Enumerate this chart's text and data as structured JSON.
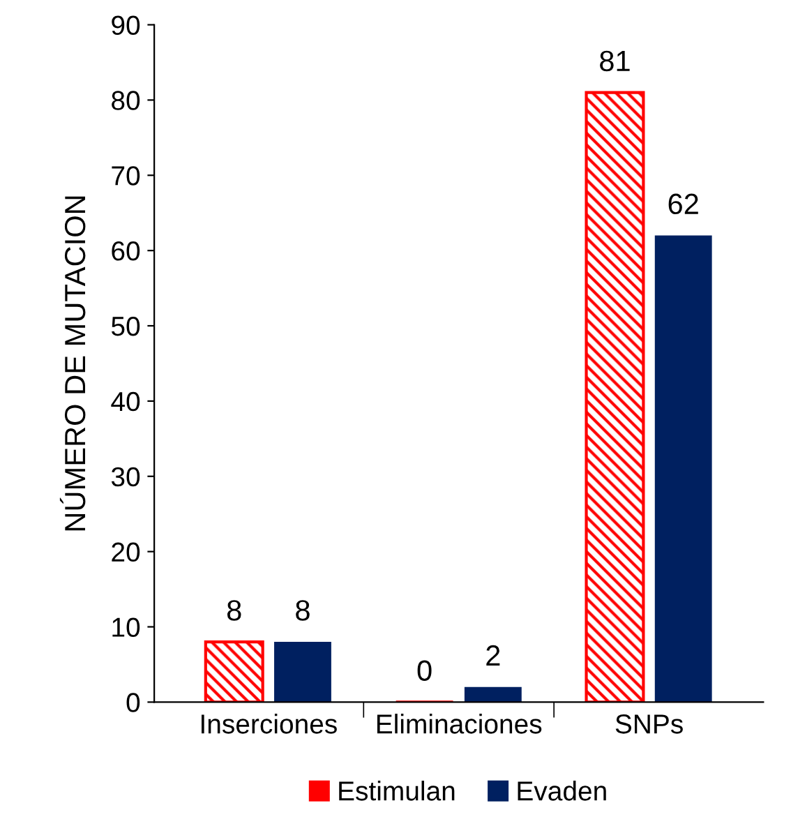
{
  "chart_data": {
    "type": "bar",
    "ylabel": "NÚMERO DE MUTACION",
    "categories": [
      "Inserciones",
      "Eliminaciones",
      "SNPs"
    ],
    "series": [
      {
        "name": "Estimulan",
        "color": "#ff0000",
        "values": [
          8,
          0,
          81
        ]
      },
      {
        "name": "Evaden",
        "color": "#002060",
        "values": [
          8,
          2,
          62
        ]
      }
    ],
    "ylim": [
      0,
      90
    ],
    "yticks": [
      0,
      10,
      20,
      30,
      40,
      50,
      60,
      70,
      80,
      90
    ],
    "data_labels": true,
    "grid": false,
    "legend": "bottom"
  }
}
